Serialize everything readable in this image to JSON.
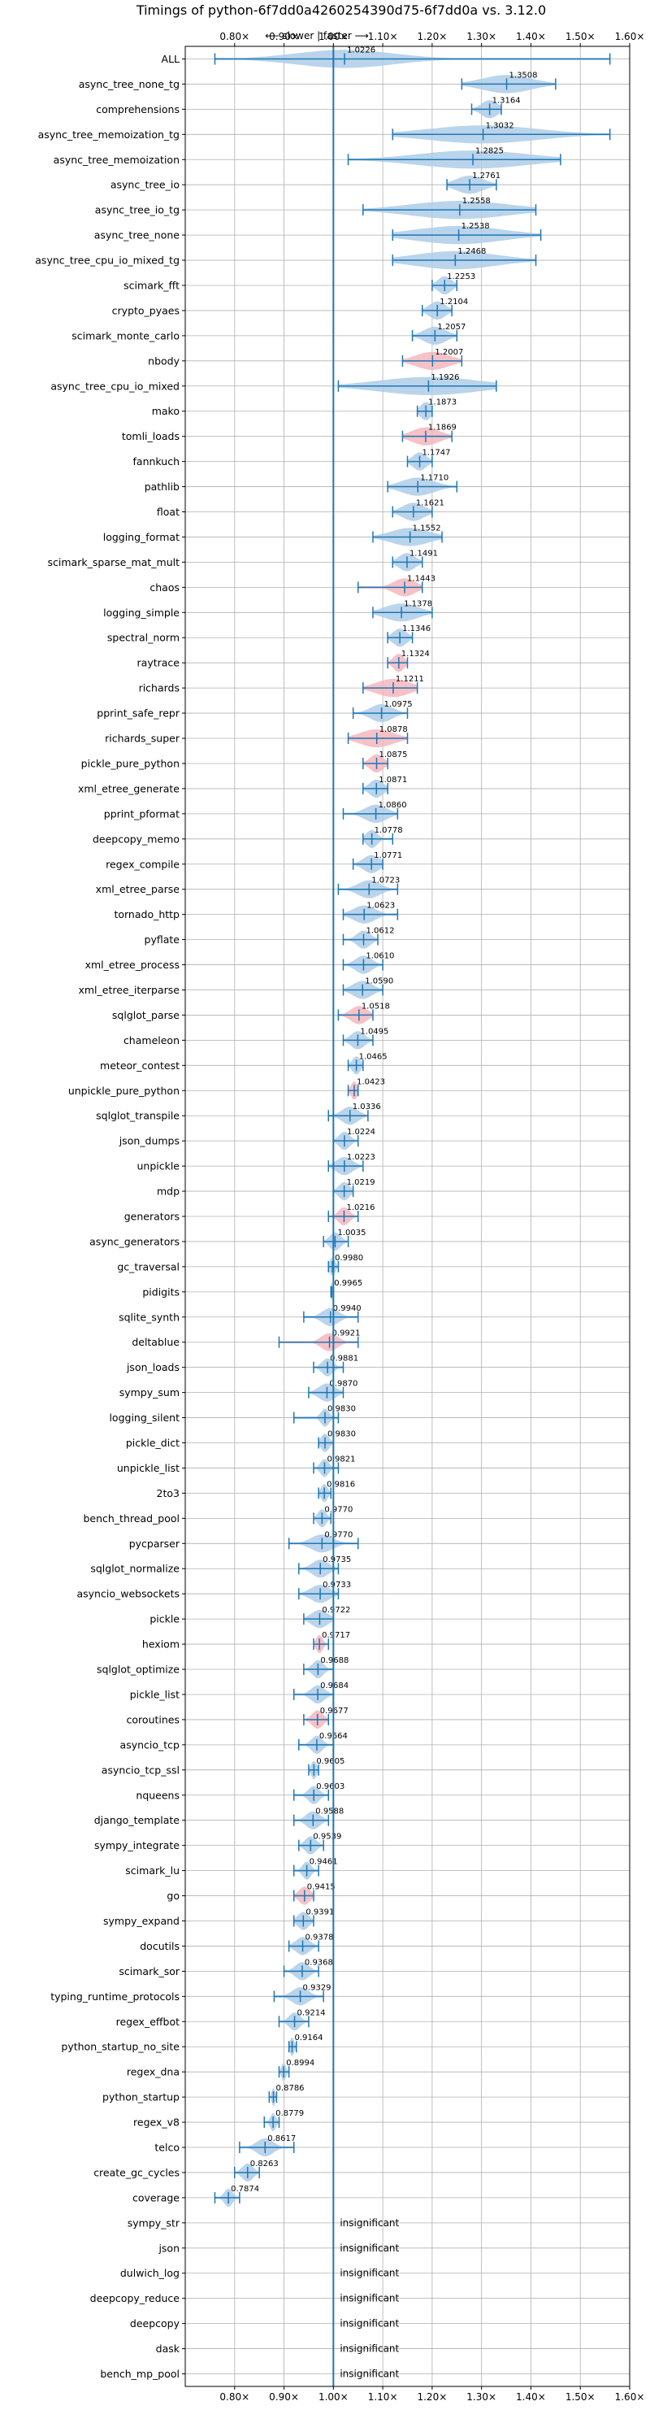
{
  "chart_data": {
    "type": "violin",
    "title": "Timings of python-6f7dd0a4260254390d75-6f7dd0a vs. 3.12.0",
    "direction_label": "⟵ slower  |  faster ⟶",
    "xlim": [
      0.7,
      1.6
    ],
    "x_ticks": [
      0.8,
      0.9,
      1.0,
      1.1,
      1.2,
      1.3,
      1.4,
      1.5,
      1.6
    ],
    "x_tick_labels": [
      "0.80×",
      "0.90×",
      "1.00×",
      "1.10×",
      "1.20×",
      "1.30×",
      "1.40×",
      "1.50×",
      "1.60×"
    ],
    "grid": true,
    "reference_line": 1.0,
    "colors": {
      "faster": "#aecde8",
      "slower": "#f4b6bd",
      "line": "#1f77b4"
    },
    "insignificant_text": "insignificant",
    "benchmarks": [
      {
        "name": "ALL",
        "label": "1.0226",
        "center": 1.0226,
        "min": 0.76,
        "max": 1.56,
        "spread": 0.18,
        "status": "faster"
      },
      {
        "name": "async_tree_none_tg",
        "label": "1.3508",
        "center": 1.3508,
        "min": 1.26,
        "max": 1.45,
        "spread": 0.09,
        "status": "faster"
      },
      {
        "name": "comprehensions",
        "label": "1.3164",
        "center": 1.3164,
        "min": 1.28,
        "max": 1.34,
        "spread": 0.03,
        "status": "faster"
      },
      {
        "name": "async_tree_memoization_tg",
        "label": "1.3032",
        "center": 1.3032,
        "min": 1.12,
        "max": 1.56,
        "spread": 0.2,
        "status": "faster"
      },
      {
        "name": "async_tree_memoization",
        "label": "1.2825",
        "center": 1.2825,
        "min": 1.03,
        "max": 1.46,
        "spread": 0.2,
        "status": "faster"
      },
      {
        "name": "async_tree_io",
        "label": "1.2761",
        "center": 1.2761,
        "min": 1.23,
        "max": 1.33,
        "spread": 0.05,
        "status": "faster"
      },
      {
        "name": "async_tree_io_tg",
        "label": "1.2558",
        "center": 1.2558,
        "min": 1.06,
        "max": 1.41,
        "spread": 0.18,
        "status": "faster"
      },
      {
        "name": "async_tree_none",
        "label": "1.2538",
        "center": 1.2538,
        "min": 1.12,
        "max": 1.42,
        "spread": 0.16,
        "status": "faster"
      },
      {
        "name": "async_tree_cpu_io_mixed_tg",
        "label": "1.2468",
        "center": 1.2468,
        "min": 1.12,
        "max": 1.41,
        "spread": 0.15,
        "status": "faster"
      },
      {
        "name": "scimark_fft",
        "label": "1.2253",
        "center": 1.2253,
        "min": 1.2,
        "max": 1.25,
        "spread": 0.025,
        "status": "faster"
      },
      {
        "name": "crypto_pyaes",
        "label": "1.2104",
        "center": 1.2104,
        "min": 1.18,
        "max": 1.24,
        "spread": 0.03,
        "status": "faster"
      },
      {
        "name": "scimark_monte_carlo",
        "label": "1.2057",
        "center": 1.2057,
        "min": 1.16,
        "max": 1.25,
        "spread": 0.04,
        "status": "faster"
      },
      {
        "name": "nbody",
        "label": "1.2007",
        "center": 1.2007,
        "min": 1.14,
        "max": 1.26,
        "spread": 0.06,
        "status": "slower"
      },
      {
        "name": "async_tree_cpu_io_mixed",
        "label": "1.1926",
        "center": 1.1926,
        "min": 1.01,
        "max": 1.33,
        "spread": 0.18,
        "status": "faster"
      },
      {
        "name": "mako",
        "label": "1.1873",
        "center": 1.1873,
        "min": 1.17,
        "max": 1.2,
        "spread": 0.02,
        "status": "faster"
      },
      {
        "name": "tomli_loads",
        "label": "1.1869",
        "center": 1.1869,
        "min": 1.14,
        "max": 1.24,
        "spread": 0.05,
        "status": "slower"
      },
      {
        "name": "fannkuch",
        "label": "1.1747",
        "center": 1.1747,
        "min": 1.15,
        "max": 1.2,
        "spread": 0.025,
        "status": "faster"
      },
      {
        "name": "pathlib",
        "label": "1.1710",
        "center": 1.171,
        "min": 1.11,
        "max": 1.25,
        "spread": 0.06,
        "status": "faster"
      },
      {
        "name": "float",
        "label": "1.1621",
        "center": 1.1621,
        "min": 1.12,
        "max": 1.2,
        "spread": 0.04,
        "status": "faster"
      },
      {
        "name": "logging_format",
        "label": "1.1552",
        "center": 1.1552,
        "min": 1.08,
        "max": 1.22,
        "spread": 0.07,
        "status": "faster"
      },
      {
        "name": "scimark_sparse_mat_mult",
        "label": "1.1491",
        "center": 1.1491,
        "min": 1.12,
        "max": 1.18,
        "spread": 0.03,
        "status": "faster"
      },
      {
        "name": "chaos",
        "label": "1.1443",
        "center": 1.1443,
        "min": 1.05,
        "max": 1.18,
        "spread": 0.04,
        "status": "slower"
      },
      {
        "name": "logging_simple",
        "label": "1.1378",
        "center": 1.1378,
        "min": 1.08,
        "max": 1.2,
        "spread": 0.06,
        "status": "faster"
      },
      {
        "name": "spectral_norm",
        "label": "1.1346",
        "center": 1.1346,
        "min": 1.11,
        "max": 1.16,
        "spread": 0.025,
        "status": "faster"
      },
      {
        "name": "raytrace",
        "label": "1.1324",
        "center": 1.1324,
        "min": 1.11,
        "max": 1.15,
        "spread": 0.02,
        "status": "slower"
      },
      {
        "name": "richards",
        "label": "1.1211",
        "center": 1.1211,
        "min": 1.06,
        "max": 1.17,
        "spread": 0.06,
        "status": "slower"
      },
      {
        "name": "pprint_safe_repr",
        "label": "1.0975",
        "center": 1.0975,
        "min": 1.04,
        "max": 1.15,
        "spread": 0.04,
        "status": "faster"
      },
      {
        "name": "richards_super",
        "label": "1.0878",
        "center": 1.0878,
        "min": 1.03,
        "max": 1.15,
        "spread": 0.06,
        "status": "slower"
      },
      {
        "name": "pickle_pure_python",
        "label": "1.0875",
        "center": 1.0875,
        "min": 1.06,
        "max": 1.11,
        "spread": 0.025,
        "status": "slower"
      },
      {
        "name": "xml_etree_generate",
        "label": "1.0871",
        "center": 1.0871,
        "min": 1.06,
        "max": 1.11,
        "spread": 0.025,
        "status": "faster"
      },
      {
        "name": "pprint_pformat",
        "label": "1.0860",
        "center": 1.086,
        "min": 1.02,
        "max": 1.13,
        "spread": 0.04,
        "status": "faster"
      },
      {
        "name": "deepcopy_memo",
        "label": "1.0778",
        "center": 1.0778,
        "min": 1.06,
        "max": 1.12,
        "spread": 0.02,
        "status": "faster"
      },
      {
        "name": "regex_compile",
        "label": "1.0771",
        "center": 1.0771,
        "min": 1.04,
        "max": 1.1,
        "spread": 0.03,
        "status": "faster"
      },
      {
        "name": "xml_etree_parse",
        "label": "1.0723",
        "center": 1.0723,
        "min": 1.01,
        "max": 1.13,
        "spread": 0.04,
        "status": "faster"
      },
      {
        "name": "tornado_http",
        "label": "1.0623",
        "center": 1.0623,
        "min": 1.02,
        "max": 1.13,
        "spread": 0.04,
        "status": "faster"
      },
      {
        "name": "pyflate",
        "label": "1.0612",
        "center": 1.0612,
        "min": 1.02,
        "max": 1.09,
        "spread": 0.025,
        "status": "faster"
      },
      {
        "name": "xml_etree_process",
        "label": "1.0610",
        "center": 1.061,
        "min": 1.02,
        "max": 1.1,
        "spread": 0.03,
        "status": "faster"
      },
      {
        "name": "xml_etree_iterparse",
        "label": "1.0590",
        "center": 1.059,
        "min": 1.02,
        "max": 1.1,
        "spread": 0.035,
        "status": "faster"
      },
      {
        "name": "sqlglot_parse",
        "label": "1.0518",
        "center": 1.0518,
        "min": 1.01,
        "max": 1.08,
        "spread": 0.03,
        "status": "slower"
      },
      {
        "name": "chameleon",
        "label": "1.0495",
        "center": 1.0495,
        "min": 1.02,
        "max": 1.08,
        "spread": 0.025,
        "status": "faster"
      },
      {
        "name": "meteor_contest",
        "label": "1.0465",
        "center": 1.0465,
        "min": 1.03,
        "max": 1.06,
        "spread": 0.015,
        "status": "faster"
      },
      {
        "name": "unpickle_pure_python",
        "label": "1.0423",
        "center": 1.0423,
        "min": 1.03,
        "max": 1.05,
        "spread": 0.012,
        "status": "slower"
      },
      {
        "name": "sqlglot_transpile",
        "label": "1.0336",
        "center": 1.0336,
        "min": 0.99,
        "max": 1.07,
        "spread": 0.03,
        "status": "faster"
      },
      {
        "name": "json_dumps",
        "label": "1.0224",
        "center": 1.0224,
        "min": 1.0,
        "max": 1.05,
        "spread": 0.02,
        "status": "faster"
      },
      {
        "name": "unpickle",
        "label": "1.0223",
        "center": 1.0223,
        "min": 0.99,
        "max": 1.06,
        "spread": 0.03,
        "status": "faster"
      },
      {
        "name": "mdp",
        "label": "1.0219",
        "center": 1.0219,
        "min": 1.0,
        "max": 1.04,
        "spread": 0.02,
        "status": "faster"
      },
      {
        "name": "generators",
        "label": "1.0216",
        "center": 1.0216,
        "min": 0.99,
        "max": 1.05,
        "spread": 0.02,
        "status": "slower"
      },
      {
        "name": "async_generators",
        "label": "1.0035",
        "center": 1.0035,
        "min": 0.98,
        "max": 1.03,
        "spread": 0.02,
        "status": "faster"
      },
      {
        "name": "gc_traversal",
        "label": "0.9980",
        "center": 0.998,
        "min": 0.99,
        "max": 1.01,
        "spread": 0.01,
        "status": "faster"
      },
      {
        "name": "pidigits",
        "label": "0.9965",
        "center": 0.9965,
        "min": 0.995,
        "max": 1.0,
        "spread": 0.004,
        "status": "faster"
      },
      {
        "name": "sqlite_synth",
        "label": "0.9940",
        "center": 0.994,
        "min": 0.94,
        "max": 1.05,
        "spread": 0.03,
        "status": "faster"
      },
      {
        "name": "deltablue",
        "label": "0.9921",
        "center": 0.9921,
        "min": 0.89,
        "max": 1.05,
        "spread": 0.03,
        "status": "slower"
      },
      {
        "name": "json_loads",
        "label": "0.9881",
        "center": 0.9881,
        "min": 0.96,
        "max": 1.02,
        "spread": 0.02,
        "status": "faster"
      },
      {
        "name": "sympy_sum",
        "label": "0.9870",
        "center": 0.987,
        "min": 0.95,
        "max": 1.02,
        "spread": 0.03,
        "status": "faster"
      },
      {
        "name": "logging_silent",
        "label": "0.9830",
        "center": 0.983,
        "min": 0.92,
        "max": 1.01,
        "spread": 0.015,
        "status": "faster"
      },
      {
        "name": "pickle_dict",
        "label": "0.9830",
        "center": 0.983,
        "min": 0.97,
        "max": 1.0,
        "spread": 0.015,
        "status": "faster"
      },
      {
        "name": "unpickle_list",
        "label": "0.9821",
        "center": 0.9821,
        "min": 0.96,
        "max": 1.01,
        "spread": 0.015,
        "status": "faster"
      },
      {
        "name": "2to3",
        "label": "0.9816",
        "center": 0.9816,
        "min": 0.97,
        "max": 0.995,
        "spread": 0.012,
        "status": "faster"
      },
      {
        "name": "bench_thread_pool",
        "label": "0.9770",
        "center": 0.977,
        "min": 0.96,
        "max": 0.995,
        "spread": 0.015,
        "status": "faster"
      },
      {
        "name": "pycparser",
        "label": "0.9770",
        "center": 0.977,
        "min": 0.91,
        "max": 1.05,
        "spread": 0.04,
        "status": "faster"
      },
      {
        "name": "sqlglot_normalize",
        "label": "0.9735",
        "center": 0.9735,
        "min": 0.93,
        "max": 1.01,
        "spread": 0.03,
        "status": "faster"
      },
      {
        "name": "asyncio_websockets",
        "label": "0.9733",
        "center": 0.9733,
        "min": 0.93,
        "max": 1.01,
        "spread": 0.035,
        "status": "faster"
      },
      {
        "name": "pickle",
        "label": "0.9722",
        "center": 0.9722,
        "min": 0.94,
        "max": 1.0,
        "spread": 0.03,
        "status": "faster"
      },
      {
        "name": "hexiom",
        "label": "0.9717",
        "center": 0.9717,
        "min": 0.96,
        "max": 0.99,
        "spread": 0.012,
        "status": "slower"
      },
      {
        "name": "sqlglot_optimize",
        "label": "0.9688",
        "center": 0.9688,
        "min": 0.94,
        "max": 1.0,
        "spread": 0.02,
        "status": "faster"
      },
      {
        "name": "pickle_list",
        "label": "0.9684",
        "center": 0.9684,
        "min": 0.92,
        "max": 1.0,
        "spread": 0.025,
        "status": "faster"
      },
      {
        "name": "coroutines",
        "label": "0.9677",
        "center": 0.9677,
        "min": 0.94,
        "max": 0.99,
        "spread": 0.02,
        "status": "slower"
      },
      {
        "name": "asyncio_tcp",
        "label": "0.9664",
        "center": 0.9664,
        "min": 0.93,
        "max": 1.0,
        "spread": 0.02,
        "status": "faster"
      },
      {
        "name": "asyncio_tcp_ssl",
        "label": "0.9605",
        "center": 0.9605,
        "min": 0.95,
        "max": 0.97,
        "spread": 0.01,
        "status": "faster"
      },
      {
        "name": "nqueens",
        "label": "0.9603",
        "center": 0.9603,
        "min": 0.92,
        "max": 0.99,
        "spread": 0.02,
        "status": "faster"
      },
      {
        "name": "django_template",
        "label": "0.9588",
        "center": 0.9588,
        "min": 0.92,
        "max": 0.99,
        "spread": 0.025,
        "status": "faster"
      },
      {
        "name": "sympy_integrate",
        "label": "0.9539",
        "center": 0.9539,
        "min": 0.93,
        "max": 0.98,
        "spread": 0.02,
        "status": "faster"
      },
      {
        "name": "scimark_lu",
        "label": "0.9461",
        "center": 0.9461,
        "min": 0.92,
        "max": 0.97,
        "spread": 0.015,
        "status": "faster"
      },
      {
        "name": "go",
        "label": "0.9415",
        "center": 0.9415,
        "min": 0.92,
        "max": 0.96,
        "spread": 0.02,
        "status": "slower"
      },
      {
        "name": "sympy_expand",
        "label": "0.9391",
        "center": 0.9391,
        "min": 0.92,
        "max": 0.96,
        "spread": 0.02,
        "status": "faster"
      },
      {
        "name": "docutils",
        "label": "0.9378",
        "center": 0.9378,
        "min": 0.91,
        "max": 0.97,
        "spread": 0.025,
        "status": "faster"
      },
      {
        "name": "scimark_sor",
        "label": "0.9368",
        "center": 0.9368,
        "min": 0.9,
        "max": 0.97,
        "spread": 0.025,
        "status": "faster"
      },
      {
        "name": "typing_runtime_protocols",
        "label": "0.9329",
        "center": 0.9329,
        "min": 0.88,
        "max": 0.98,
        "spread": 0.03,
        "status": "faster"
      },
      {
        "name": "regex_effbot",
        "label": "0.9214",
        "center": 0.9214,
        "min": 0.89,
        "max": 0.95,
        "spread": 0.02,
        "status": "faster"
      },
      {
        "name": "python_startup_no_site",
        "label": "0.9164",
        "center": 0.9164,
        "min": 0.91,
        "max": 0.925,
        "spread": 0.008,
        "status": "faster"
      },
      {
        "name": "regex_dna",
        "label": "0.8994",
        "center": 0.8994,
        "min": 0.89,
        "max": 0.91,
        "spread": 0.008,
        "status": "faster"
      },
      {
        "name": "python_startup",
        "label": "0.8786",
        "center": 0.8786,
        "min": 0.87,
        "max": 0.885,
        "spread": 0.006,
        "status": "faster"
      },
      {
        "name": "regex_v8",
        "label": "0.8779",
        "center": 0.8779,
        "min": 0.86,
        "max": 0.89,
        "spread": 0.01,
        "status": "faster"
      },
      {
        "name": "telco",
        "label": "0.8617",
        "center": 0.8617,
        "min": 0.81,
        "max": 0.92,
        "spread": 0.03,
        "status": "faster"
      },
      {
        "name": "create_gc_cycles",
        "label": "0.8263",
        "center": 0.8263,
        "min": 0.8,
        "max": 0.85,
        "spread": 0.02,
        "status": "faster"
      },
      {
        "name": "coverage",
        "label": "0.7874",
        "center": 0.7874,
        "min": 0.76,
        "max": 0.81,
        "spread": 0.015,
        "status": "faster"
      },
      {
        "name": "sympy_str",
        "label": "",
        "status": "insignificant"
      },
      {
        "name": "json",
        "label": "",
        "status": "insignificant"
      },
      {
        "name": "dulwich_log",
        "label": "",
        "status": "insignificant"
      },
      {
        "name": "deepcopy_reduce",
        "label": "",
        "status": "insignificant"
      },
      {
        "name": "deepcopy",
        "label": "",
        "status": "insignificant"
      },
      {
        "name": "dask",
        "label": "",
        "status": "insignificant"
      },
      {
        "name": "bench_mp_pool",
        "label": "",
        "status": "insignificant"
      }
    ]
  }
}
